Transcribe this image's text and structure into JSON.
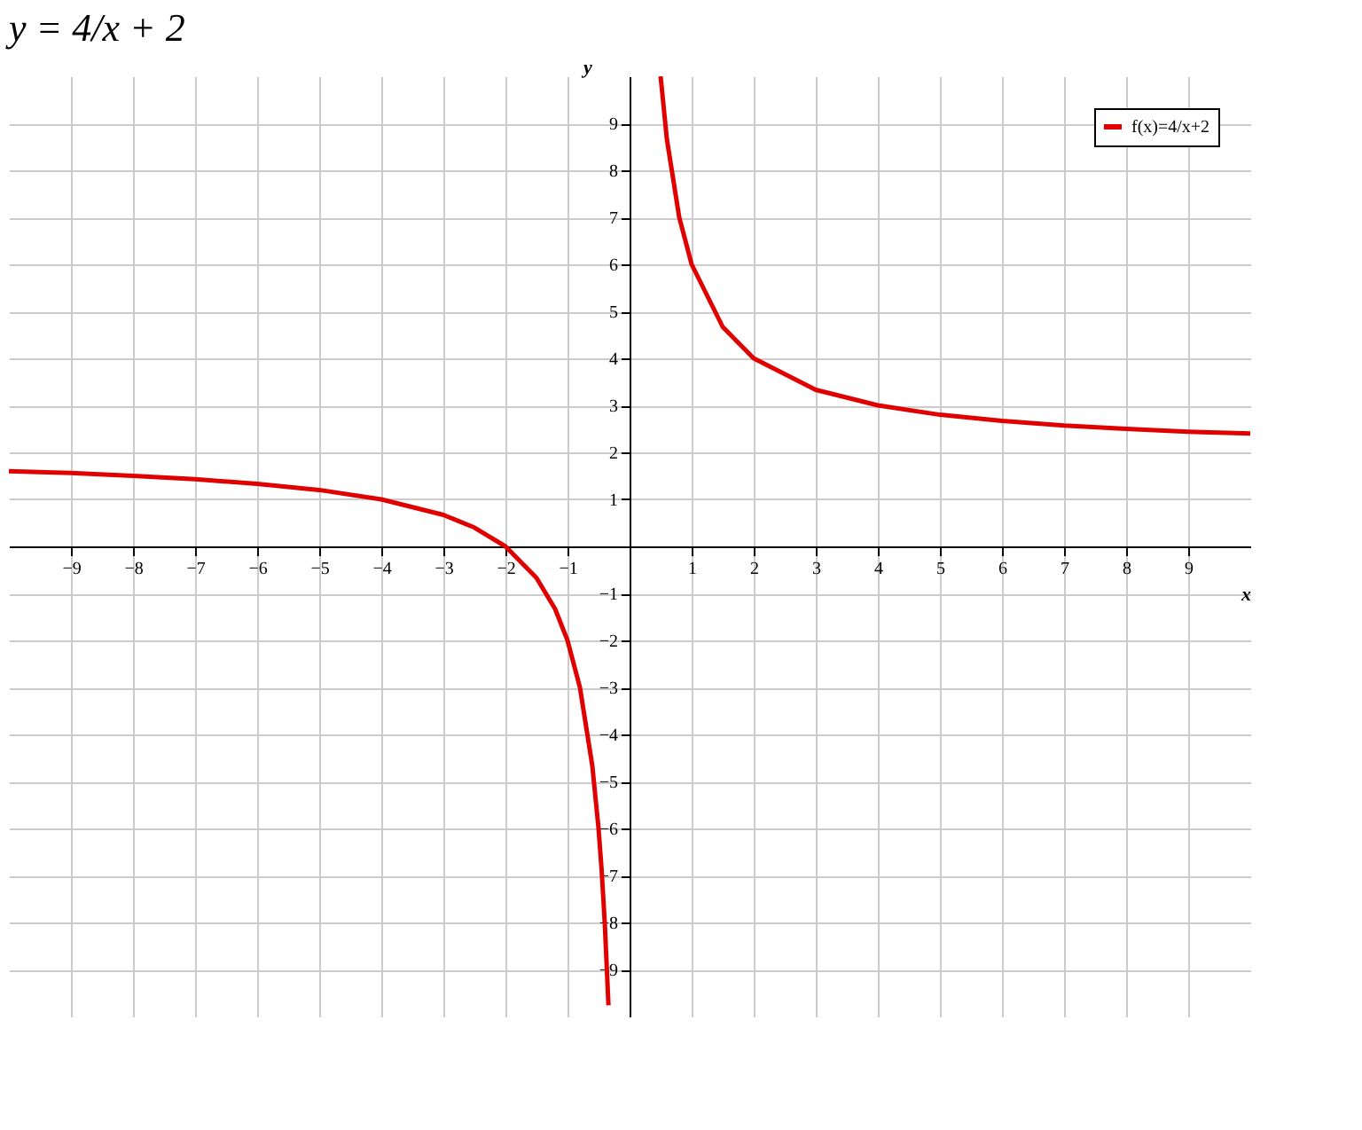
{
  "chart_data": {
    "type": "line",
    "title": "y = 4/x + 2",
    "xlabel": "x",
    "ylabel": "y",
    "x": [
      -10,
      -9,
      -8,
      -7,
      -6,
      -5,
      -4,
      -3,
      -2.5,
      -2,
      -1.5,
      -1.2,
      -1,
      -0.8,
      -0.6,
      -0.5,
      -0.45,
      -0.4,
      -0.34,
      0,
      0.5,
      0.6,
      0.8,
      1,
      1.5,
      2,
      3,
      4,
      5,
      6,
      7,
      8,
      9,
      10
    ],
    "series": [
      {
        "name": "f(x)=4/x+2",
        "color": "#e00000",
        "values": [
          1.6,
          1.56,
          1.5,
          1.43,
          1.33,
          1.2,
          1,
          0.67,
          0.4,
          0,
          -0.67,
          -1.33,
          -2,
          -3,
          -4.67,
          -6,
          -6.89,
          -8,
          -9.76,
          null,
          10,
          8.67,
          7,
          6,
          4.67,
          4,
          3.33,
          3,
          2.8,
          2.67,
          2.57,
          2.5,
          2.44,
          2.4
        ]
      }
    ],
    "xlim": [
      -10,
      10
    ],
    "ylim": [
      -10,
      10
    ],
    "xticks": [
      -9,
      -8,
      -7,
      -6,
      -5,
      -4,
      -3,
      -2,
      -1,
      1,
      2,
      3,
      4,
      5,
      6,
      7,
      8,
      9
    ],
    "yticks": [
      -9,
      -8,
      -7,
      -6,
      -5,
      -4,
      -3,
      -2,
      -1,
      1,
      2,
      3,
      4,
      5,
      6,
      7,
      8,
      9
    ],
    "grid": true,
    "legend": "top right",
    "marker": "none",
    "line_style": "solid"
  }
}
